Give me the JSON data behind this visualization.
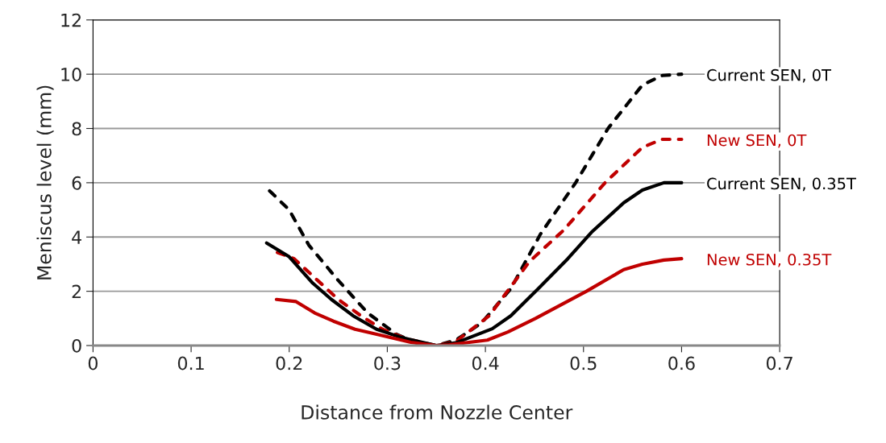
{
  "chart_data": {
    "type": "line",
    "xlabel": "Distance from Nozzle Center",
    "ylabel": "Meniscus level (mm)",
    "xlim": [
      0,
      0.7
    ],
    "xticks": [
      0,
      0.1,
      0.2,
      0.3,
      0.4,
      0.5,
      0.6,
      0.7
    ],
    "ylim": [
      0,
      12
    ],
    "yticks": [
      0,
      2,
      4,
      6,
      8,
      10,
      12
    ],
    "grid": "y",
    "legend": false,
    "marker": "none",
    "series": [
      {
        "name": "Current SEN, 0T",
        "color": "#000000",
        "line_style": "dashed",
        "x": [
          0.18,
          0.2,
          0.22,
          0.25,
          0.28,
          0.31,
          0.33,
          0.35,
          0.37,
          0.396,
          0.426,
          0.456,
          0.492,
          0.525,
          0.56,
          0.58,
          0.6
        ],
        "values": [
          5.7,
          5.0,
          3.7,
          2.4,
          1.2,
          0.4,
          0.1,
          0,
          0.2,
          0.83,
          2.1,
          4.1,
          6.0,
          8.0,
          9.6,
          9.95,
          10.0
        ]
      },
      {
        "name": "New SEN, 0T",
        "color": "#c00000",
        "line_style": "dashed",
        "x": [
          0.188,
          0.205,
          0.229,
          0.25,
          0.273,
          0.295,
          0.32,
          0.35,
          0.37,
          0.404,
          0.445,
          0.48,
          0.522,
          0.56,
          0.58,
          0.6
        ],
        "values": [
          3.43,
          3.2,
          2.4,
          1.7,
          1.1,
          0.6,
          0.24,
          0,
          0.15,
          1.1,
          3.1,
          4.26,
          6.0,
          7.3,
          7.6,
          7.6
        ]
      },
      {
        "name": "Current SEN, 0.35T",
        "color": "#000000",
        "line_style": "solid",
        "x": [
          0.177,
          0.2,
          0.224,
          0.243,
          0.265,
          0.289,
          0.314,
          0.35,
          0.37,
          0.407,
          0.426,
          0.454,
          0.484,
          0.508,
          0.541,
          0.56,
          0.582,
          0.6
        ],
        "values": [
          3.78,
          3.27,
          2.3,
          1.7,
          1.1,
          0.6,
          0.3,
          0,
          0.1,
          0.62,
          1.1,
          2.1,
          3.2,
          4.17,
          5.26,
          5.73,
          6.0,
          6.0
        ]
      },
      {
        "name": "New SEN, 0.35T",
        "color": "#c00000",
        "line_style": "solid",
        "x": [
          0.187,
          0.207,
          0.226,
          0.245,
          0.267,
          0.291,
          0.324,
          0.35,
          0.363,
          0.402,
          0.423,
          0.451,
          0.503,
          0.541,
          0.56,
          0.582,
          0.6
        ],
        "values": [
          1.7,
          1.62,
          1.2,
          0.9,
          0.6,
          0.4,
          0.12,
          0,
          0.03,
          0.2,
          0.5,
          1.0,
          2.0,
          2.8,
          3.0,
          3.15,
          3.2
        ]
      }
    ]
  }
}
